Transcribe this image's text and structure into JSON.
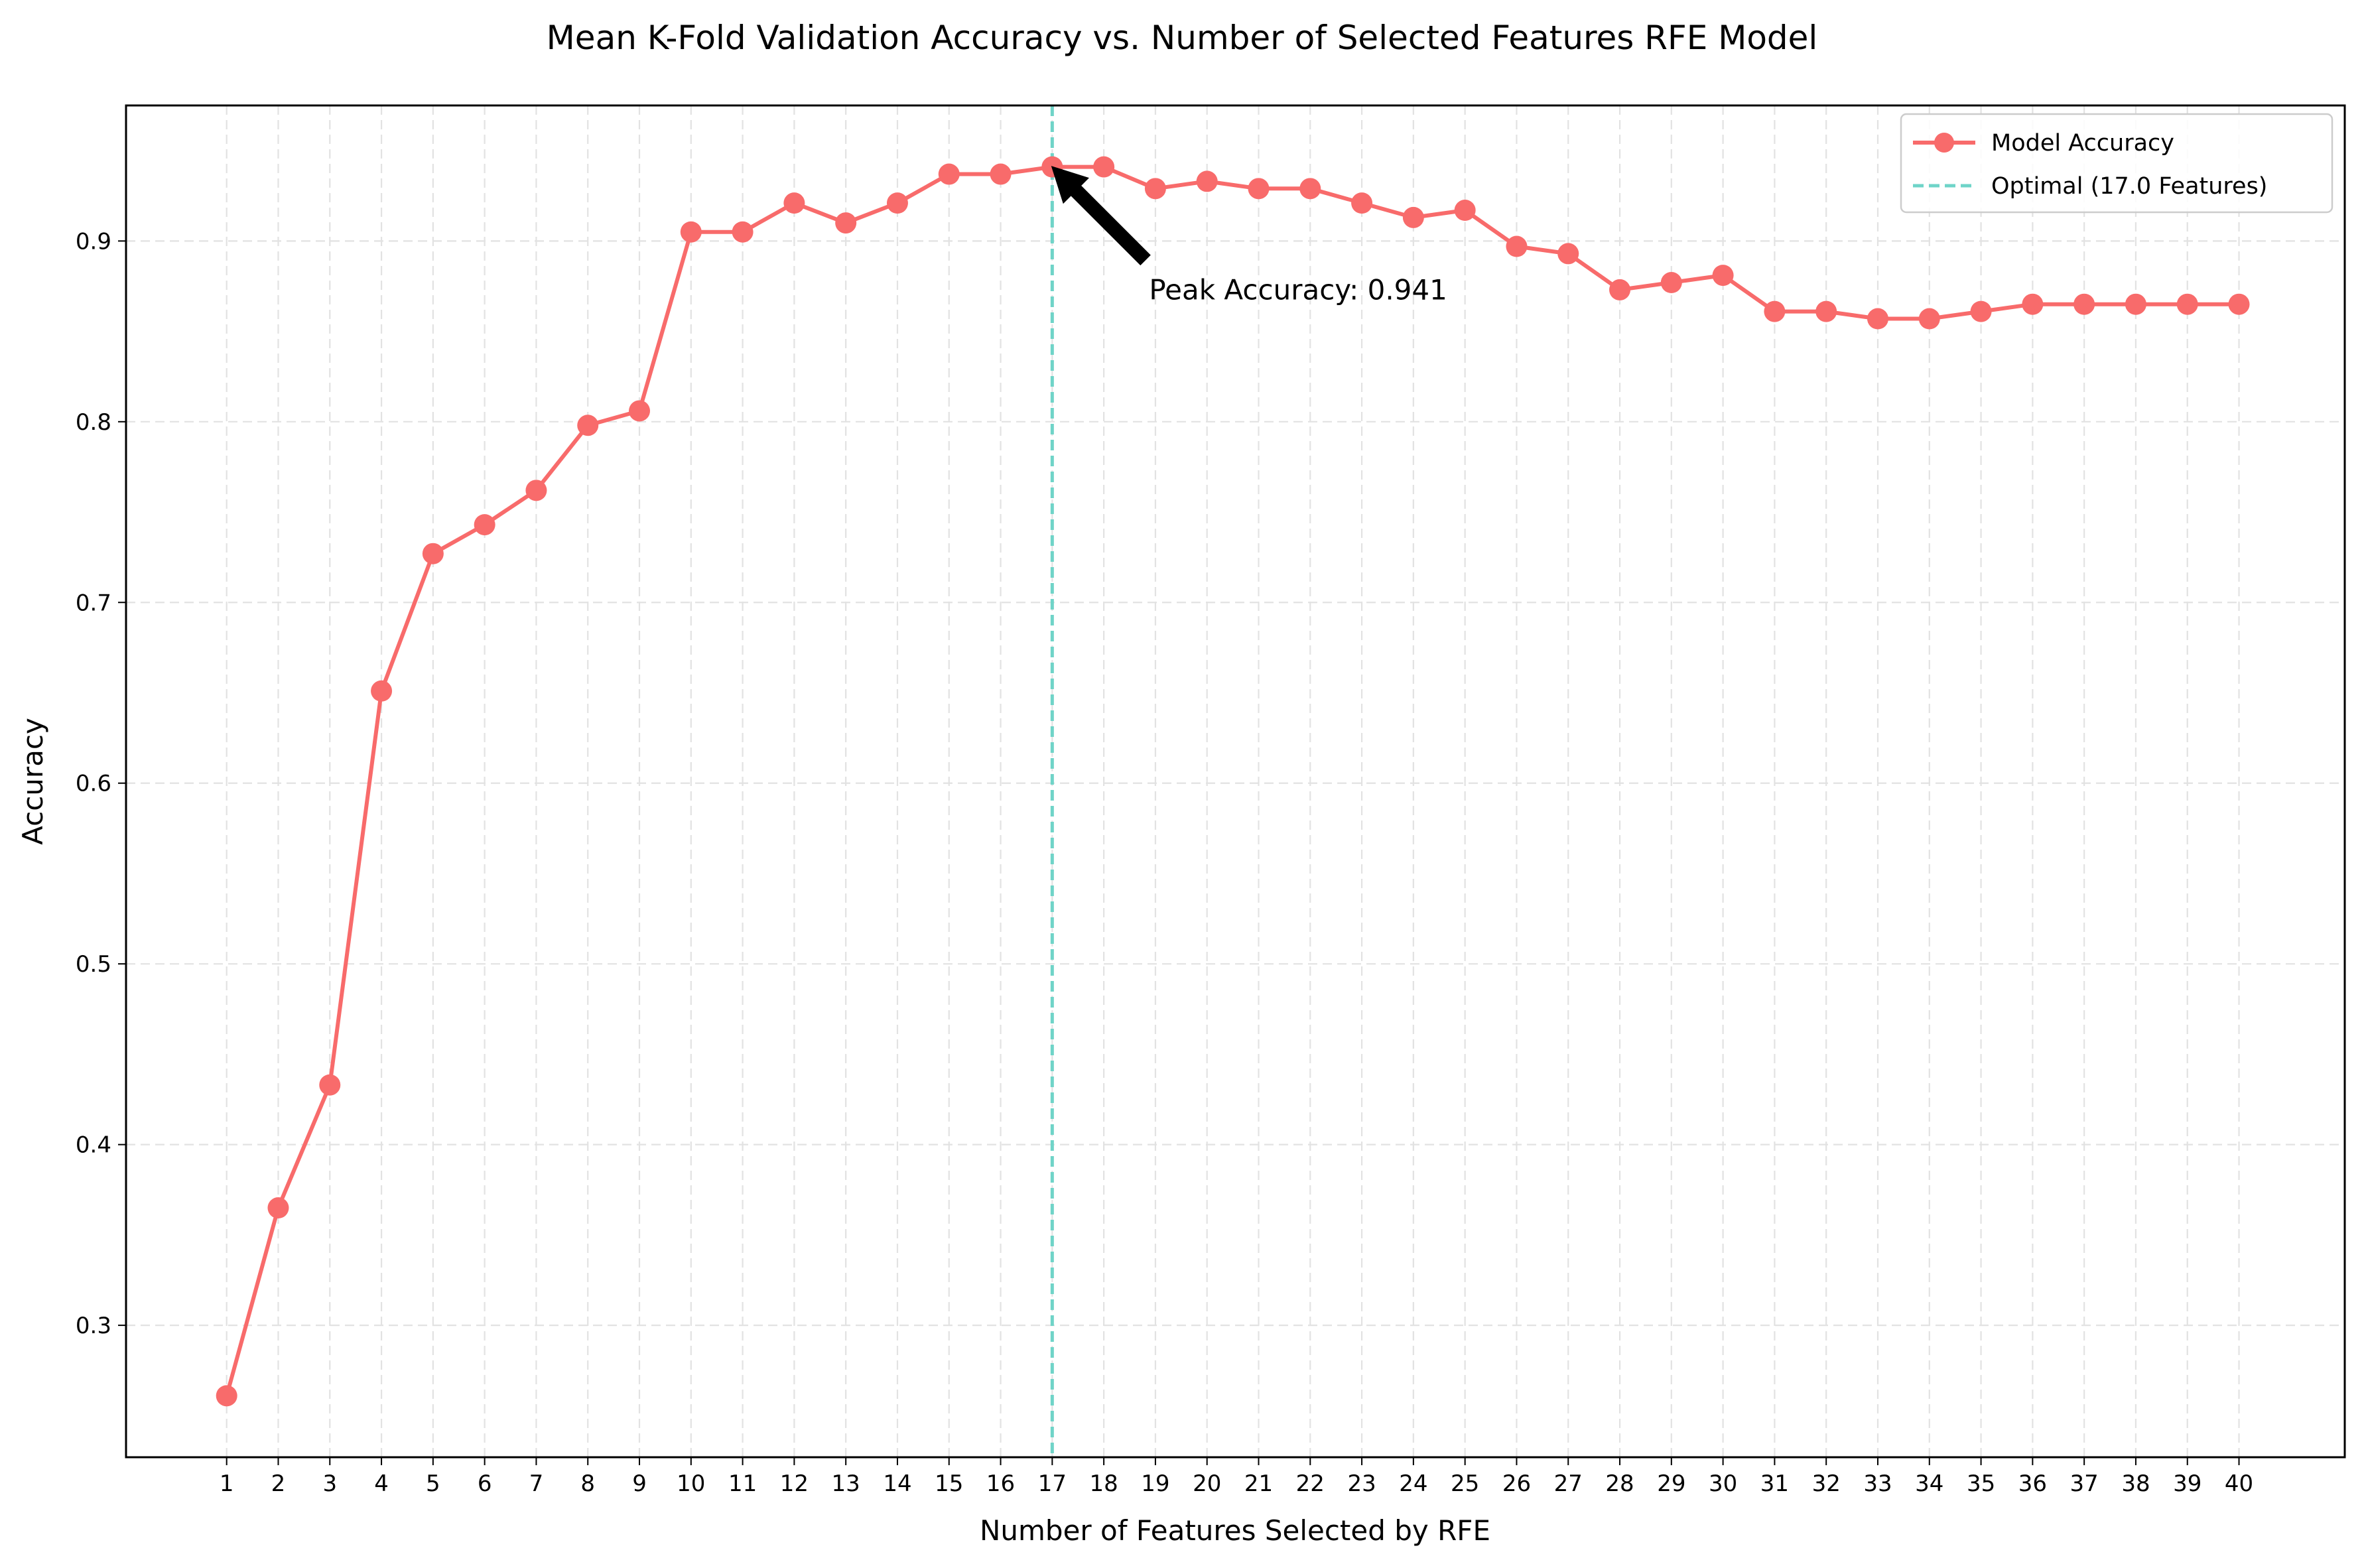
{
  "chart_data": {
    "type": "line",
    "title": "Mean K-Fold Validation Accuracy vs. Number of Selected Features RFE Model",
    "xlabel": "Number of Features Selected by RFE",
    "ylabel": "Accuracy",
    "x": [
      1,
      2,
      3,
      4,
      5,
      6,
      7,
      8,
      9,
      10,
      11,
      12,
      13,
      14,
      15,
      16,
      17,
      18,
      19,
      20,
      21,
      22,
      23,
      24,
      25,
      26,
      27,
      28,
      29,
      30,
      31,
      32,
      33,
      34,
      35,
      36,
      37,
      38,
      39,
      40
    ],
    "series": [
      {
        "name": "Model Accuracy",
        "color": "#f86b6b",
        "values": [
          0.261,
          0.365,
          0.433,
          0.651,
          0.727,
          0.743,
          0.762,
          0.798,
          0.806,
          0.905,
          0.905,
          0.921,
          0.91,
          0.921,
          0.937,
          0.937,
          0.941,
          0.941,
          0.929,
          0.933,
          0.929,
          0.929,
          0.921,
          0.913,
          0.917,
          0.897,
          0.893,
          0.873,
          0.877,
          0.881,
          0.861,
          0.861,
          0.857,
          0.857,
          0.861,
          0.865,
          0.865,
          0.865,
          0.865,
          0.865
        ]
      }
    ],
    "optimal_line": {
      "label": "Optimal (17.0 Features)",
      "x": 17,
      "color": "#6fd4c8"
    },
    "annotation": {
      "text": "Peak Accuracy: 0.941",
      "x": 17,
      "y": 0.941
    },
    "xlim": [
      -0.95,
      42.05
    ],
    "ylim": [
      0.227,
      0.975
    ],
    "xticks": [
      "1",
      "2",
      "3",
      "4",
      "5",
      "6",
      "7",
      "8",
      "9",
      "10",
      "11",
      "12",
      "13",
      "14",
      "15",
      "16",
      "17",
      "18",
      "19",
      "20",
      "21",
      "22",
      "23",
      "24",
      "25",
      "26",
      "27",
      "28",
      "29",
      "30",
      "31",
      "32",
      "33",
      "34",
      "35",
      "36",
      "37",
      "38",
      "39",
      "40"
    ],
    "yticks": [
      0.3,
      0.4,
      0.5,
      0.6,
      0.7,
      0.8,
      0.9
    ],
    "ytick_labels": [
      "0.3",
      "0.4",
      "0.5",
      "0.6",
      "0.7",
      "0.8",
      "0.9"
    ],
    "grid": true,
    "legend": "top-right"
  }
}
